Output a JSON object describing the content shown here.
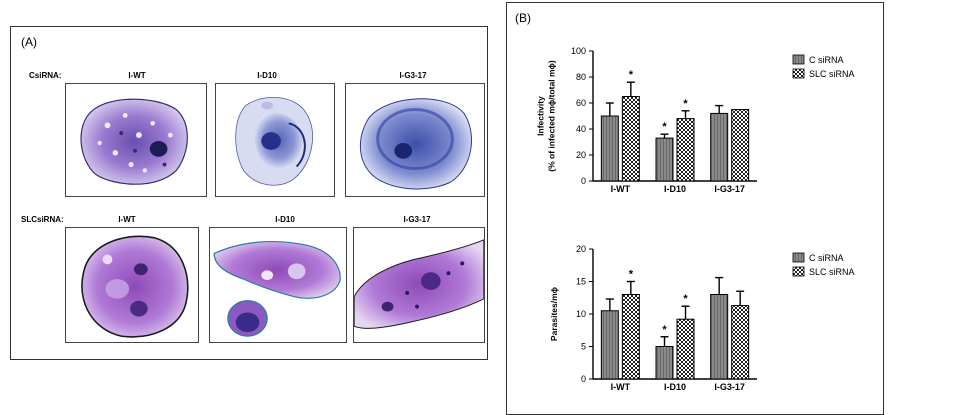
{
  "panel_a": {
    "label": "(A)",
    "rows": [
      {
        "label": "CsiRNA:",
        "columns": [
          "I-WT",
          "I-D10",
          "I-G3-17"
        ]
      },
      {
        "label": "SLCsiRNA:",
        "columns": [
          "I-WT",
          "I-D10",
          "I-G3-17"
        ]
      }
    ]
  },
  "panel_b": {
    "label": "(B)"
  },
  "chart_data": [
    {
      "type": "bar",
      "ylabel": "Infectivity\n(% of infected mϕ/total mϕ)",
      "categories": [
        "I-WT",
        "I-D10",
        "I-G3-17"
      ],
      "ylim": [
        0,
        100
      ],
      "yticks": [
        0,
        20,
        40,
        60,
        80,
        100
      ],
      "series": [
        {
          "name": "C siRNA",
          "values": [
            50,
            33,
            52
          ],
          "errors": [
            10,
            3,
            6
          ],
          "significance": [
            "",
            "*",
            ""
          ]
        },
        {
          "name": "SLC siRNA",
          "values": [
            65,
            48,
            55
          ],
          "errors": [
            11,
            6,
            0
          ],
          "significance": [
            "*",
            "*",
            ""
          ]
        }
      ],
      "legend": "top-right"
    },
    {
      "type": "bar",
      "ylabel": "Parasites/mϕ",
      "categories": [
        "I-WT",
        "I-D10",
        "I-G3-17"
      ],
      "ylim": [
        0,
        20
      ],
      "yticks": [
        0,
        5,
        10,
        15,
        20
      ],
      "series": [
        {
          "name": "C siRNA",
          "values": [
            10.5,
            5,
            13
          ],
          "errors": [
            1.8,
            1.5,
            2.6
          ],
          "significance": [
            "",
            "*",
            ""
          ]
        },
        {
          "name": "SLC siRNA",
          "values": [
            13,
            9.2,
            11.3
          ],
          "errors": [
            2.0,
            2.0,
            2.2
          ],
          "significance": [
            "*",
            "*",
            ""
          ]
        }
      ],
      "legend": "top-right"
    }
  ]
}
